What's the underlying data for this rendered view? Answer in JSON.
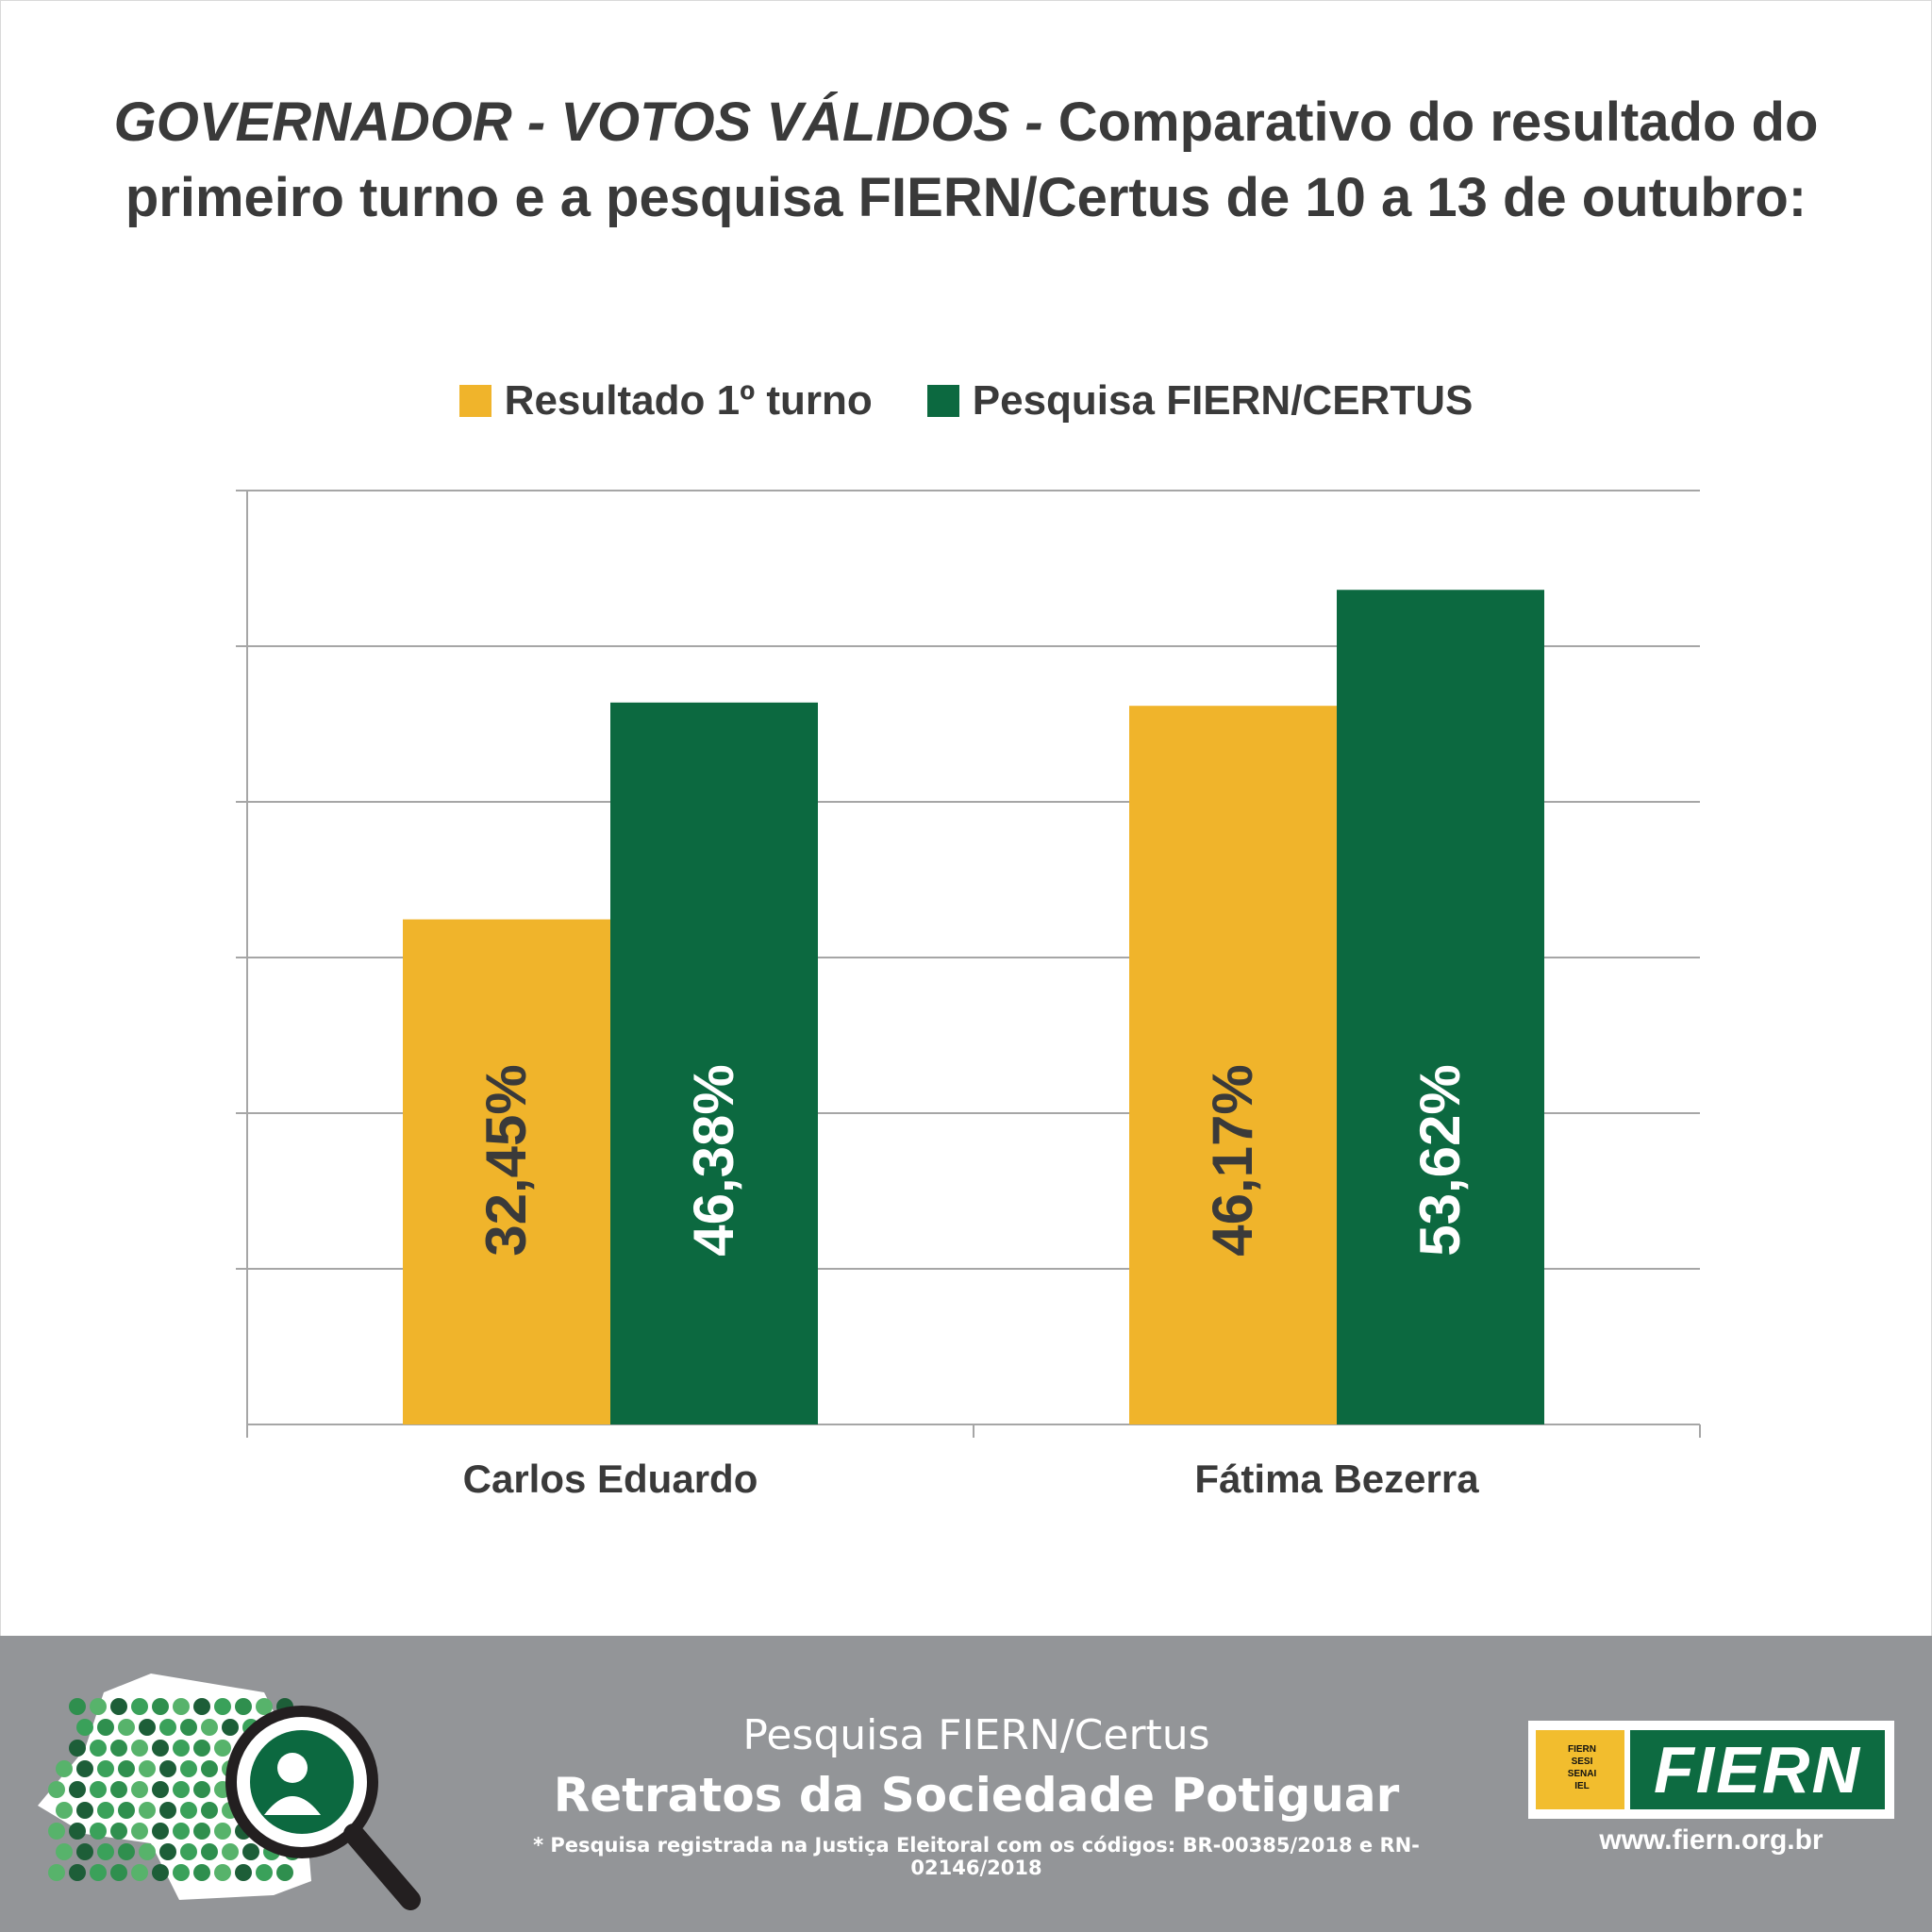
{
  "title": {
    "part1": "GOVERNADOR - VOTOS VÁLIDOS -",
    "part2": " Comparativo do resultado do",
    "line2": "primeiro turno e a pesquisa FIERN/Certus de 10 a 13 de outubro:"
  },
  "colors": {
    "resultado": "#f0b42b",
    "pesquisa": "#0c6940",
    "grid": "#a6a6a6",
    "footer": "#939598"
  },
  "chart_data": {
    "type": "bar",
    "title": "",
    "xlabel": "",
    "ylabel": "",
    "categories": [
      "Carlos Eduardo",
      "Fátima Bezerra"
    ],
    "series": [
      {
        "name": "Resultado 1º turno",
        "values": [
          32.45,
          46.17
        ],
        "labels": [
          "32,45%",
          "46,17%"
        ]
      },
      {
        "name": "Pesquisa FIERN/CERTUS",
        "values": [
          46.38,
          53.62
        ],
        "labels": [
          "46,38%",
          "53,62%"
        ]
      }
    ],
    "ylim": [
      0,
      60
    ],
    "grid": true,
    "legend": "top-center"
  },
  "footer": {
    "subtitle": "Pesquisa FIERN/Certus",
    "headline": "Retratos da Sociedade Potiguar",
    "note": "* Pesquisa registrada na Justiça Eleitoral com os códigos: BR-00385/2018 e RN-02146/2018",
    "logo_text": "FIERN",
    "logo_lines": [
      "FIERN",
      "SESI",
      "SENAI",
      "IEL"
    ],
    "url": "www.fiern.org.br"
  }
}
